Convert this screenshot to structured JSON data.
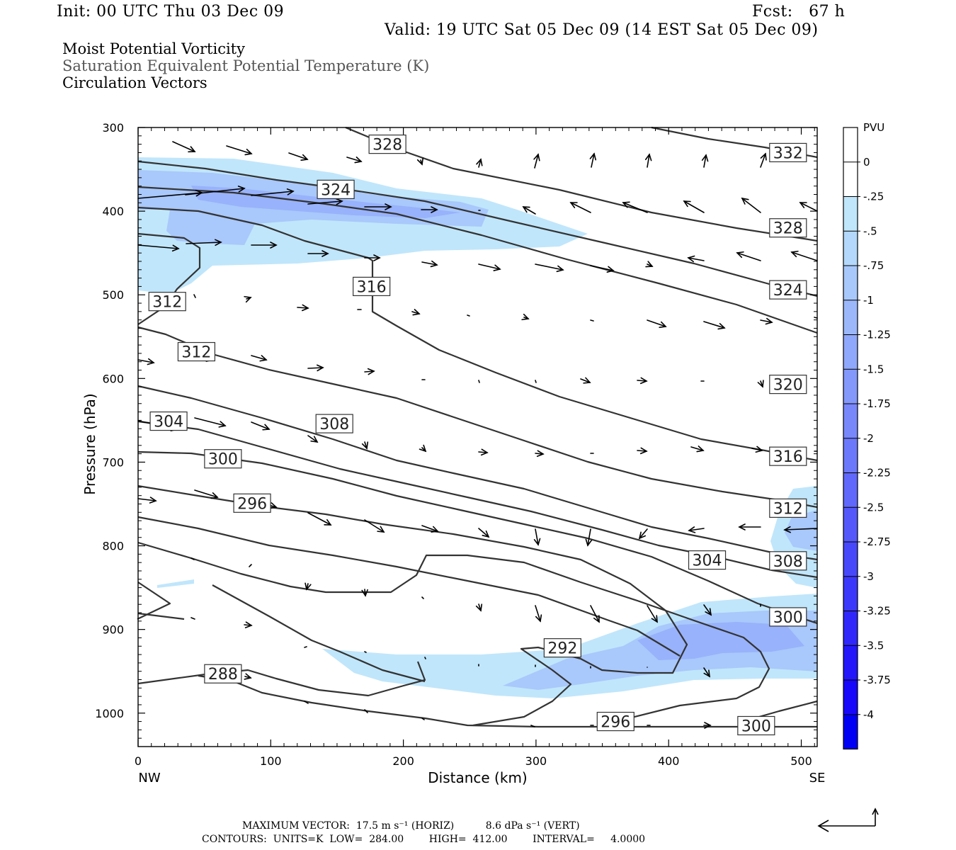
{
  "header": {
    "init": "Init: 00 UTC Thu 03 Dec 09",
    "fcst": "Fcst:   67 h",
    "valid": "Valid: 19 UTC Sat 05 Dec 09 (14 EST Sat 05 Dec 09)"
  },
  "legend_lines": [
    {
      "text": "Moist Potential Vorticity",
      "color": "#000000"
    },
    {
      "text": "Saturation Equivalent Potential Temperature (K)",
      "color": "#555555"
    },
    {
      "text": "Circulation Vectors",
      "color": "#000000"
    }
  ],
  "footer": {
    "max_vector": "MAXIMUM VECTOR:  17.5 m s⁻¹ (HORIZ)          8.6 dPa s⁻¹ (VERT)",
    "contours": "CONTOURS:  UNITS=K  LOW=  284.00        HIGH=  412.00        INTERVAL=     4.0000"
  },
  "chart_data": {
    "type": "contour",
    "xlabel": "Distance (km)",
    "ylabel": "Pressure (hPa)",
    "xlim": [
      0,
      512
    ],
    "ylim": [
      1040,
      300
    ],
    "x_ticks": [
      "0",
      "100",
      "200",
      "300",
      "400",
      "500"
    ],
    "y_ticks": [
      "300",
      "400",
      "500",
      "600",
      "700",
      "800",
      "900",
      "1000"
    ],
    "x_end_labels": {
      "left": "NW",
      "right": "SE"
    },
    "colorbar": {
      "title": "PVU",
      "labels": [
        "0",
        "-.25",
        "-.5",
        "-.75",
        "-1",
        "-1.25",
        "-1.5",
        "-1.75",
        "-2",
        "-2.25",
        "-2.5",
        "-2.75",
        "-3",
        "-3.25",
        "-3.5",
        "-3.75",
        "-4"
      ],
      "colors": [
        "#ffffff",
        "#ffffff",
        "#c0e6fb",
        "#b4d8fb",
        "#a8c8fb",
        "#9cb8fb",
        "#90a8fb",
        "#8498fb",
        "#7888fb",
        "#6c78fb",
        "#6068fb",
        "#5458fb",
        "#4848fb",
        "#3c38fb",
        "#3028fb",
        "#2418fb",
        "#1808fb",
        "#0000f5"
      ]
    },
    "contour_labels": [
      {
        "v": "328",
        "x": 188,
        "p": 320
      },
      {
        "v": "332",
        "x": 490,
        "p": 330
      },
      {
        "v": "324",
        "x": 149,
        "p": 374
      },
      {
        "v": "328",
        "x": 490,
        "p": 420
      },
      {
        "v": "316",
        "x": 176,
        "p": 490
      },
      {
        "v": "324",
        "x": 490,
        "p": 494
      },
      {
        "v": "312",
        "x": 22,
        "p": 508
      },
      {
        "v": "312",
        "x": 44,
        "p": 568
      },
      {
        "v": "320",
        "x": 490,
        "p": 607
      },
      {
        "v": "304",
        "x": 23,
        "p": 651
      },
      {
        "v": "308",
        "x": 148,
        "p": 654
      },
      {
        "v": "300",
        "x": 64,
        "p": 696
      },
      {
        "v": "316",
        "x": 490,
        "p": 693
      },
      {
        "v": "296",
        "x": 86,
        "p": 749
      },
      {
        "v": "312",
        "x": 490,
        "p": 755
      },
      {
        "v": "304",
        "x": 429,
        "p": 817
      },
      {
        "v": "308",
        "x": 490,
        "p": 818
      },
      {
        "v": "300",
        "x": 490,
        "p": 885
      },
      {
        "v": "292",
        "x": 320,
        "p": 922
      },
      {
        "v": "288",
        "x": 64,
        "p": 953
      },
      {
        "v": "296",
        "x": 360,
        "p": 1010
      },
      {
        "v": "300",
        "x": 466,
        "p": 1015
      }
    ]
  }
}
